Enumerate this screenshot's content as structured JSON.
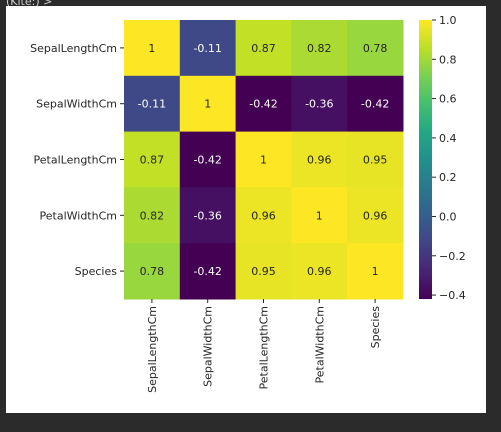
{
  "cell_output_label": "(Kite:) >",
  "chart_data": {
    "type": "heatmap",
    "rows": [
      "SepalLengthCm",
      "SepalWidthCm",
      "PetalLengthCm",
      "PetalWidthCm",
      "Species"
    ],
    "columns": [
      "SepalLengthCm",
      "SepalWidthCm",
      "PetalLengthCm",
      "PetalWidthCm",
      "Species"
    ],
    "values": [
      [
        1,
        -0.11,
        0.87,
        0.82,
        0.78
      ],
      [
        -0.11,
        1,
        -0.42,
        -0.36,
        -0.42
      ],
      [
        0.87,
        -0.42,
        1,
        0.96,
        0.95
      ],
      [
        0.82,
        -0.36,
        0.96,
        1,
        0.96
      ],
      [
        0.78,
        -0.42,
        0.95,
        0.96,
        1
      ]
    ],
    "value_labels": [
      [
        "1",
        "-0.11",
        "0.87",
        "0.82",
        "0.78"
      ],
      [
        "-0.11",
        "1",
        "-0.42",
        "-0.36",
        "-0.42"
      ],
      [
        "0.87",
        "-0.42",
        "1",
        "0.96",
        "0.95"
      ],
      [
        "0.82",
        "-0.36",
        "0.96",
        "1",
        "0.96"
      ],
      [
        "0.78",
        "-0.42",
        "0.95",
        "0.96",
        "1"
      ]
    ],
    "colormap": "viridis",
    "vmin": -0.42,
    "vmax": 1.0,
    "colorbar_ticks": [
      1.0,
      0.8,
      0.6,
      0.4,
      0.2,
      0.0,
      -0.2,
      -0.4
    ],
    "colorbar_tick_labels": [
      "1.0",
      "0.8",
      "0.6",
      "0.4",
      "0.2",
      "0.0",
      "−0.2",
      "−0.4"
    ],
    "annotated": true,
    "title": "",
    "xlabel": "",
    "ylabel": ""
  }
}
